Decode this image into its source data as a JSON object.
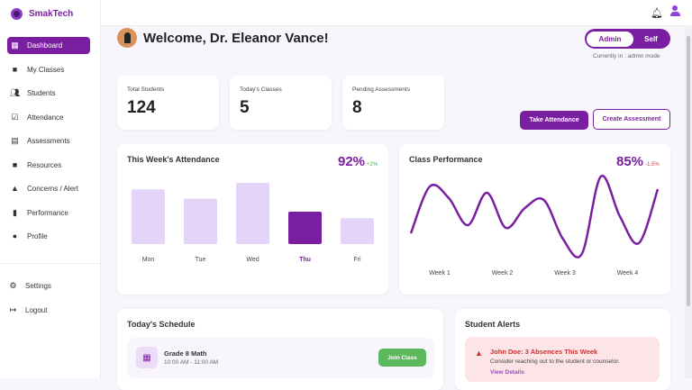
{
  "brand": "SmakTech",
  "sidebar": {
    "items": [
      {
        "label": "Dashboard",
        "icon": "dashboard-icon",
        "active": true
      },
      {
        "label": "My Classes",
        "icon": "book-icon"
      },
      {
        "label": "Students",
        "icon": "people-icon"
      },
      {
        "label": "Attendance",
        "icon": "calendar-check-icon"
      },
      {
        "label": "Assessments",
        "icon": "clipboard-icon"
      },
      {
        "label": "Resources",
        "icon": "book-icon"
      },
      {
        "label": "Concerns / Alert",
        "icon": "warning-icon"
      },
      {
        "label": "Performance",
        "icon": "bar-chart-icon"
      },
      {
        "label": "Profile",
        "icon": "account-circle-icon"
      }
    ],
    "bottom": [
      {
        "label": "Settings",
        "icon": "gear-icon"
      },
      {
        "label": "Logout",
        "icon": "logout-icon"
      }
    ]
  },
  "welcome": "Welcome, Dr. Eleanor Vance!",
  "mode_toggle": {
    "options": [
      "Admin",
      "Self"
    ],
    "selected": "Admin",
    "status": "Currently in : admin mode"
  },
  "stats": [
    {
      "label": "Total Students",
      "value": "124"
    },
    {
      "label": "Today's Classes",
      "value": "5"
    },
    {
      "label": "Pending Assessments",
      "value": "8"
    }
  ],
  "actions": {
    "take_attendance": "Take Attendance",
    "create_assessment": "Create Assessment"
  },
  "attendance": {
    "title": "This Week's Attendance",
    "value": "92%",
    "delta": "+2%"
  },
  "performance": {
    "title": "Class Performance",
    "value": "85%",
    "delta": "-1.5%"
  },
  "chart_data": [
    {
      "type": "bar",
      "title": "This Week's Attendance",
      "categories": [
        "Mon",
        "Tue",
        "Wed",
        "Thu",
        "Fri"
      ],
      "values": [
        76,
        63,
        85,
        45,
        36
      ],
      "highlight": "Thu",
      "ylim": [
        0,
        100
      ],
      "colors": {
        "bar": "#e4d4f7",
        "highlight": "#7b1fa2"
      }
    },
    {
      "type": "line",
      "title": "Class Performance",
      "x_ticks": [
        "Week 1",
        "Week 2",
        "Week 3",
        "Week 4"
      ],
      "values": [
        31,
        83,
        70,
        40,
        76,
        37,
        59,
        68,
        25,
        8,
        94,
        50,
        20,
        80
      ],
      "ylim": [
        0,
        100
      ],
      "color": "#7b1fa2"
    }
  ],
  "schedule": {
    "title": "Today's Schedule",
    "items": [
      {
        "name": "Grade 8 Math",
        "time": "10:00 AM - 11:00 AM",
        "action": "Join Class"
      }
    ]
  },
  "alerts": {
    "title": "Student Alerts",
    "items": [
      {
        "title": "John Doe: 3 Absences This Week",
        "desc": "Consider reaching out to the student or counselor.",
        "link": "View Details"
      }
    ]
  }
}
